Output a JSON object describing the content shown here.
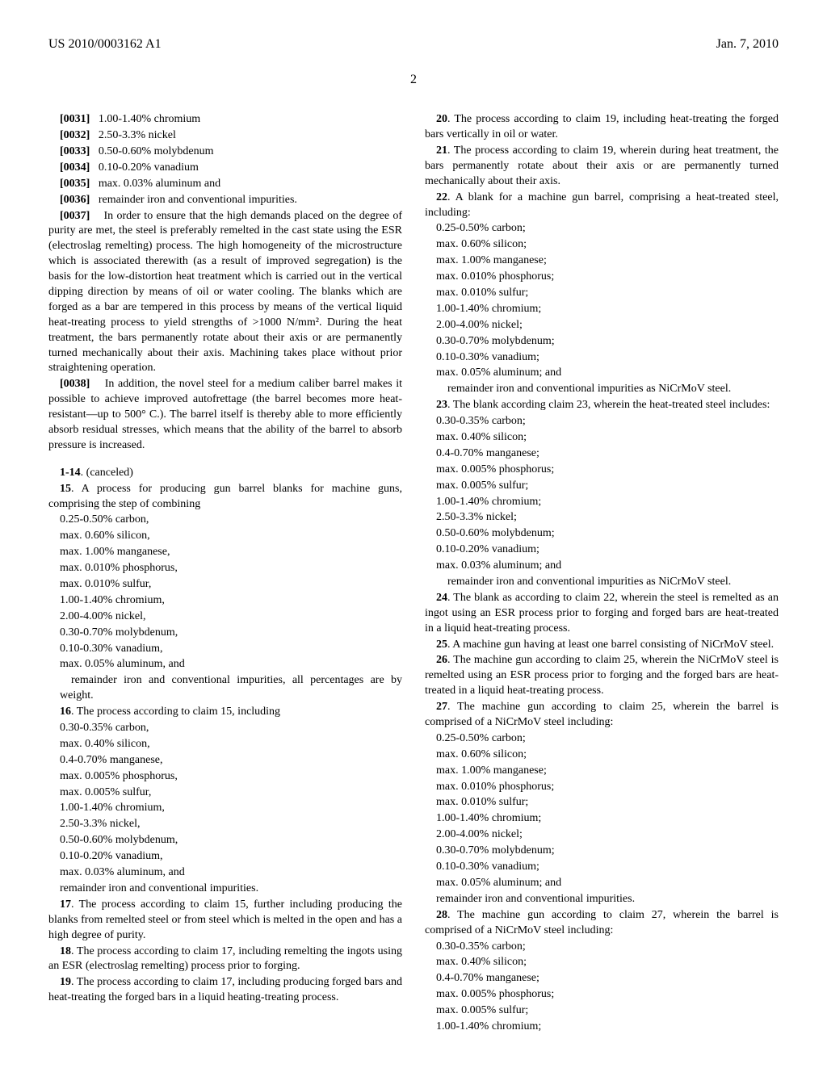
{
  "header": {
    "pub_number": "US 2010/0003162 A1",
    "pub_date": "Jan. 7, 2010",
    "page_num": "2"
  },
  "left_col": {
    "composition_paras": [
      {
        "num": "[0031]",
        "text": "1.00-1.40% chromium"
      },
      {
        "num": "[0032]",
        "text": "2.50-3.3% nickel"
      },
      {
        "num": "[0033]",
        "text": "0.50-0.60% molybdenum"
      },
      {
        "num": "[0034]",
        "text": "0.10-0.20% vanadium"
      },
      {
        "num": "[0035]",
        "text": "max. 0.03% aluminum and"
      },
      {
        "num": "[0036]",
        "text": "remainder iron and conventional impurities."
      }
    ],
    "para37_num": "[0037]",
    "para37_text": "In order to ensure that the high demands placed on the degree of purity are met, the steel is preferably remelted in the cast state using the ESR (electroslag remelting) process. The high homogeneity of the microstructure which is associated therewith (as a result of improved segregation) is the basis for the low-distortion heat treatment which is carried out in the vertical dipping direction by means of oil or water cooling. The blanks which are forged as a bar are tempered in this process by means of the vertical liquid heat-treating process to yield strengths of >1000 N/mm². During the heat treatment, the bars permanently rotate about their axis or are permanently turned mechanically about their axis. Machining takes place without prior straightening operation.",
    "para38_num": "[0038]",
    "para38_text": "In addition, the novel steel for a medium caliber barrel makes it possible to achieve improved autofrettage (the barrel becomes more heat-resistant—up to 500° C.). The barrel itself is thereby able to more efficiently absorb residual stresses, which means that the ability of the barrel to absorb pressure is increased.",
    "claim_canceled_num": "1-14",
    "claim_canceled_text": ". (canceled)",
    "claim15_num": "15",
    "claim15_text": ". A process for producing gun barrel blanks for machine guns, comprising the step of combining",
    "claim15_items": [
      "0.25-0.50% carbon,",
      "max. 0.60% silicon,",
      "max. 1.00% manganese,",
      "max. 0.010% phosphorus,",
      "max. 0.010% sulfur,",
      "1.00-1.40% chromium,",
      "2.00-4.00% nickel,",
      "0.30-0.70% molybdenum,",
      "0.10-0.30% vanadium,",
      "max. 0.05% aluminum, and",
      "remainder iron and conventional impurities, all percentages are by weight."
    ],
    "claim16_num": "16",
    "claim16_text": ". The process according to claim 15, including",
    "claim16_items": [
      "0.30-0.35% carbon,",
      "max. 0.40% silicon,",
      "0.4-0.70% manganese,",
      "max. 0.005% phosphorus,",
      "max. 0.005% sulfur,",
      "1.00-1.40% chromium,",
      "2.50-3.3% nickel,",
      "0.50-0.60% molybdenum,",
      "0.10-0.20% vanadium,",
      "max. 0.03% aluminum, and",
      "remainder iron and conventional impurities."
    ],
    "claim17_num": "17",
    "claim17_text": ". The process according to claim 15, further including producing the blanks from remelted steel or from steel which is melted in the open and has a high degree of purity.",
    "claim18_num": "18",
    "claim18_text": ". The process according to claim 17, including remelting the ingots using an ESR (electroslag remelting) process prior to forging.",
    "claim19_num": "19",
    "claim19_text": ". The process according to claim 17, including producing forged bars and heat-treating the forged bars in a liquid heating-treating process."
  },
  "right_col": {
    "claim20_num": "20",
    "claim20_text": ". The process according to claim 19, including heat-treating the forged bars vertically in oil or water.",
    "claim21_num": "21",
    "claim21_text": ". The process according to claim 19, wherein during heat treatment, the bars permanently rotate about their axis or are permanently turned mechanically about their axis.",
    "claim22_num": "22",
    "claim22_text": ". A blank for a machine gun barrel, comprising a heat-treated steel, including:",
    "claim22_items": [
      "0.25-0.50% carbon;",
      "max. 0.60% silicon;",
      "max. 1.00% manganese;",
      "max. 0.010% phosphorus;",
      "max. 0.010% sulfur;",
      "1.00-1.40% chromium;",
      "2.00-4.00% nickel;",
      "0.30-0.70% molybdenum;",
      "0.10-0.30% vanadium;",
      "max. 0.05% aluminum; and",
      "remainder iron and conventional impurities as NiCrMoV steel."
    ],
    "claim23_num": "23",
    "claim23_text": ". The blank according claim 23, wherein the heat-treated steel includes:",
    "claim23_items": [
      "0.30-0.35% carbon;",
      "max. 0.40% silicon;",
      "0.4-0.70% manganese;",
      "max. 0.005% phosphorus;",
      "max. 0.005% sulfur;",
      "1.00-1.40% chromium;",
      "2.50-3.3% nickel;",
      "0.50-0.60% molybdenum;",
      "0.10-0.20% vanadium;",
      "max. 0.03% aluminum; and",
      "remainder iron and conventional impurities as NiCrMoV steel."
    ],
    "claim24_num": "24",
    "claim24_text": ". The blank as according to claim 22, wherein the steel is remelted as an ingot using an ESR process prior to forging and forged bars are heat-treated in a liquid heat-treating process.",
    "claim25_num": "25",
    "claim25_text": ". A machine gun having at least one barrel consisting of NiCrMoV steel.",
    "claim26_num": "26",
    "claim26_text": ". The machine gun according to claim 25, wherein the NiCrMoV steel is remelted using an ESR process prior to forging and the forged bars are heat-treated in a liquid heat-treating process.",
    "claim27_num": "27",
    "claim27_text": ". The machine gun according to claim 25, wherein the barrel is comprised of a NiCrMoV steel including:",
    "claim27_items": [
      "0.25-0.50% carbon;",
      "max. 0.60% silicon;",
      "max. 1.00% manganese;",
      "max. 0.010% phosphorus;",
      "max. 0.010% sulfur;",
      "1.00-1.40% chromium;",
      "2.00-4.00% nickel;",
      "0.30-0.70% molybdenum;",
      "0.10-0.30% vanadium;",
      "max. 0.05% aluminum; and",
      "remainder iron and conventional impurities."
    ],
    "claim28_num": "28",
    "claim28_text": ". The machine gun according to claim 27, wherein the barrel is comprised of a NiCrMoV steel including:",
    "claim28_items": [
      "0.30-0.35% carbon;",
      "max. 0.40% silicon;",
      "0.4-0.70% manganese;",
      "max. 0.005% phosphorus;",
      "max. 0.005% sulfur;",
      "1.00-1.40% chromium;"
    ]
  }
}
